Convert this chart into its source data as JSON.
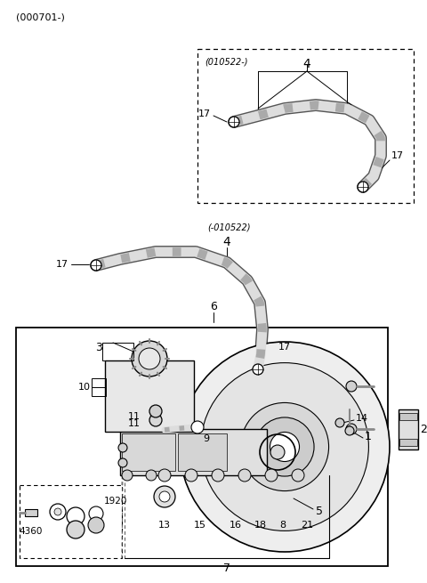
{
  "bg_color": "#ffffff",
  "fig_width": 4.8,
  "fig_height": 6.55,
  "dpi": 100,
  "top_label": "(000701-)",
  "upper_box_label": "(010522-)",
  "lower_hose_label": "(-010522)",
  "hose_color": "#c8c8c8",
  "hose_outline": "#888888",
  "gray_light": "#e8e8e8",
  "gray_med": "#d0d0d0",
  "gray_dark": "#b0b0b0"
}
